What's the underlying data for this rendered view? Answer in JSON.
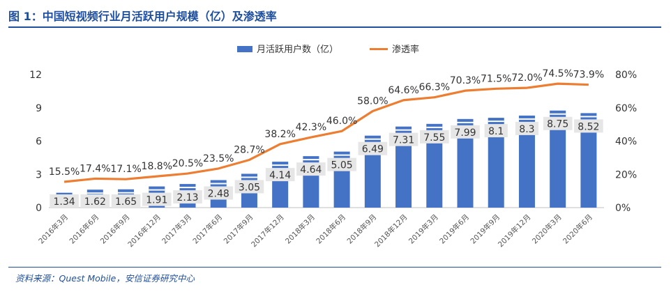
{
  "header": {
    "title": "图 1：中国短视频行业月活跃用户规模（亿）及渗透率"
  },
  "footer": {
    "source": "资料来源：Quest Mobile，安信证券研究中心"
  },
  "colors": {
    "bar": "#4472c4",
    "line": "#ed7d31",
    "title": "#1f4e9c",
    "label_bg": "#e7e6e6"
  },
  "chart_data": {
    "type": "bar",
    "categories": [
      "2016年3月",
      "2016年6月",
      "2016年9月",
      "2016年12月",
      "2017年3月",
      "2017年6月",
      "2017年9月",
      "2017年12月",
      "2018年3月",
      "2018年6月",
      "2018年9月",
      "2018年12月",
      "2019年3月",
      "2019年6月",
      "2019年9月",
      "2019年12月",
      "2020年3月",
      "2020年6月"
    ],
    "series": [
      {
        "name": "月活跃用户数（亿）",
        "type": "bar",
        "axis": "left",
        "values": [
          1.34,
          1.62,
          1.65,
          1.91,
          2.13,
          2.48,
          3.05,
          4.14,
          4.64,
          5.05,
          6.49,
          7.31,
          7.55,
          7.99,
          8.1,
          8.3,
          8.75,
          8.52
        ],
        "labels": [
          "1.34",
          "1.62",
          "1.65",
          "1.91",
          "2.13",
          "2.48",
          "3.05",
          "4.14",
          "4.64",
          "5.05",
          "6.49",
          "7.31",
          "7.55",
          "7.99",
          "8.1",
          "8.3",
          "8.75",
          "8.52"
        ]
      },
      {
        "name": "渗透率",
        "type": "line",
        "axis": "right",
        "values": [
          15.5,
          17.4,
          17.1,
          18.8,
          20.5,
          23.5,
          28.7,
          38.2,
          42.3,
          46.0,
          58.0,
          64.6,
          66.3,
          70.3,
          71.5,
          72.0,
          74.5,
          73.9
        ],
        "labels": [
          "15.5%",
          "17.4%",
          "17.1%",
          "18.8%",
          "20.5%",
          "23.5%",
          "28.7%",
          "38.2%",
          "42.3%",
          "46.0%",
          "58.0%",
          "64.6%",
          "66.3%",
          "70.3%",
          "71.5%",
          "72.0%",
          "74.5%",
          "73.9%"
        ]
      }
    ],
    "y_left": {
      "min": 0,
      "max": 12,
      "ticks": [
        "0",
        "3",
        "6",
        "9",
        "12"
      ]
    },
    "y_right": {
      "min": 0,
      "max": 80,
      "ticks": [
        "0%",
        "20%",
        "40%",
        "60%",
        "80%"
      ]
    },
    "legend_position": "top-center"
  }
}
